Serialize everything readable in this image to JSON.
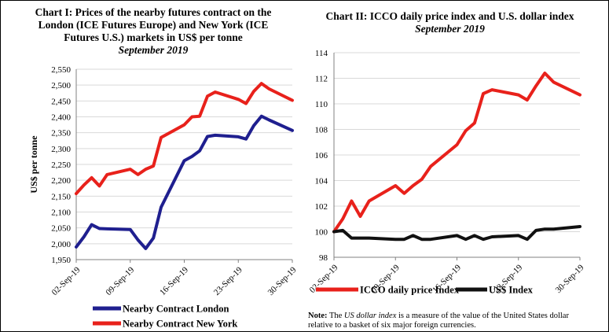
{
  "chart_data": [
    {
      "type": "line",
      "title": "Chart I: Prices of the nearby futures contract on the London (ICE Futures Europe) and New York (ICE Futures U.S.) markets in US$ per tonne",
      "subtitle": "September 2019",
      "ylabel": "US$ per tonne",
      "xlabel": "",
      "ylim": [
        1950,
        2550
      ],
      "yticks": [
        1950,
        2000,
        2050,
        2100,
        2150,
        2200,
        2250,
        2300,
        2350,
        2400,
        2450,
        2500,
        2550
      ],
      "ytick_labels": [
        "1,950",
        "2,000",
        "2,050",
        "2,100",
        "2,150",
        "2,200",
        "2,250",
        "2,300",
        "2,350",
        "2,400",
        "2,450",
        "2,500",
        "2,550"
      ],
      "x_range": [
        2,
        30
      ],
      "xticks": [
        2,
        9,
        16,
        23,
        30
      ],
      "xtick_labels": [
        "02-Sep-19",
        "09-Sep-19",
        "16-Sep-19",
        "23-Sep-19",
        "30-Sep-19"
      ],
      "grid": true,
      "legend": "bottom",
      "series": [
        {
          "name": "Nearby Contract London",
          "color": "#1f1f8f",
          "x": [
            2,
            3,
            4,
            5,
            6,
            9,
            10,
            11,
            12,
            13,
            16,
            17,
            18,
            19,
            20,
            23,
            24,
            25,
            26,
            27,
            30
          ],
          "values": [
            1990,
            2022,
            2060,
            2048,
            2047,
            2045,
            2012,
            1985,
            2018,
            2115,
            2262,
            2275,
            2293,
            2338,
            2342,
            2337,
            2330,
            2372,
            2402,
            2390,
            2357
          ]
        },
        {
          "name": "Nearby Contract New York",
          "color": "#e8211b",
          "x": [
            2,
            3,
            4,
            5,
            6,
            9,
            10,
            11,
            12,
            13,
            16,
            17,
            18,
            19,
            20,
            23,
            24,
            25,
            26,
            27,
            30
          ],
          "values": [
            2158,
            2185,
            2208,
            2182,
            2218,
            2235,
            2218,
            2235,
            2245,
            2335,
            2375,
            2400,
            2402,
            2465,
            2478,
            2455,
            2442,
            2480,
            2505,
            2488,
            2452
          ]
        }
      ]
    },
    {
      "type": "line",
      "title": "Chart II: ICCO daily price index and U.S. dollar index",
      "subtitle": "September 2019",
      "ylabel": "",
      "xlabel": "",
      "ylim": [
        98,
        114
      ],
      "yticks": [
        98,
        100,
        102,
        104,
        106,
        108,
        110,
        112,
        114
      ],
      "ytick_labels": [
        "98",
        "100",
        "102",
        "104",
        "106",
        "108",
        "110",
        "112",
        "114"
      ],
      "x_range": [
        2,
        30
      ],
      "xticks": [
        2,
        9,
        16,
        23,
        30
      ],
      "xtick_labels": [
        "02-Sep-19",
        "09-Sep-19",
        "16-Sep-19",
        "23-Sep-19",
        "30-Sep-19"
      ],
      "grid": true,
      "legend": "bottom",
      "series": [
        {
          "name": "ICCO daily price Index",
          "color": "#e8211b",
          "x": [
            2,
            3,
            4,
            5,
            6,
            9,
            10,
            11,
            12,
            13,
            16,
            17,
            18,
            19,
            20,
            23,
            24,
            25,
            26,
            27,
            30
          ],
          "values": [
            100.0,
            101.0,
            102.4,
            101.2,
            102.4,
            103.6,
            103.0,
            103.6,
            104.1,
            105.1,
            106.8,
            107.9,
            108.5,
            110.8,
            111.1,
            110.7,
            110.3,
            111.4,
            112.4,
            111.7,
            110.7
          ]
        },
        {
          "name": "US$ Index",
          "color": "#111111",
          "x": [
            2,
            3,
            4,
            5,
            6,
            9,
            10,
            11,
            12,
            13,
            16,
            17,
            18,
            19,
            20,
            23,
            24,
            25,
            26,
            27,
            30
          ],
          "values": [
            100.0,
            100.1,
            99.5,
            99.5,
            99.5,
            99.4,
            99.4,
            99.7,
            99.4,
            99.4,
            99.7,
            99.4,
            99.7,
            99.4,
            99.6,
            99.7,
            99.4,
            100.1,
            100.2,
            100.2,
            100.4
          ]
        }
      ]
    }
  ],
  "chart1": {
    "title_line1": "Chart I: Prices of the nearby futures contract on the",
    "title_line2": "London (ICE Futures Europe) and New York (ICE",
    "title_line3": "Futures U.S.) markets in US$ per tonne",
    "subtitle": "September 2019"
  },
  "chart2": {
    "title": "Chart II: ICCO daily price index and U.S. dollar index",
    "subtitle": "September 2019"
  },
  "note": {
    "label": "Note:",
    "text_before": "The",
    "emph": "US dollar index",
    "text_after": "is a measure of the value of the United States dollar relative to a basket of six major foreign currencies."
  }
}
